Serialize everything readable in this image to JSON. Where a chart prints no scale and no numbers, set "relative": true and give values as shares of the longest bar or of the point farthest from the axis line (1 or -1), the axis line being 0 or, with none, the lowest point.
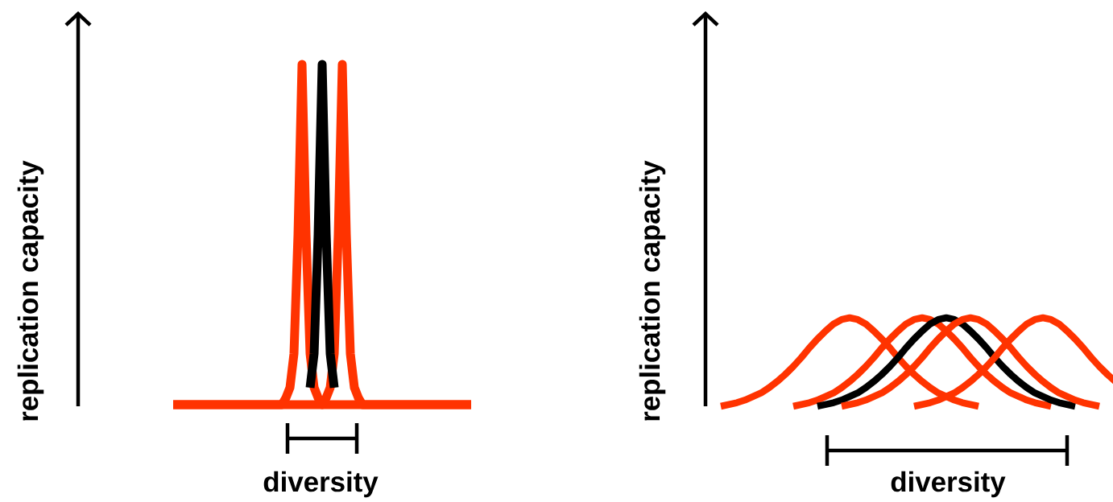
{
  "chart_data": [
    {
      "type": "line",
      "relative": true,
      "ylabel": "replication capacity",
      "xlabel": "diversity",
      "line_style": "solid",
      "marker": "none",
      "categories": [
        null,
        null,
        null,
        null,
        null,
        null,
        null,
        null,
        null,
        null,
        null,
        null,
        null,
        null,
        null,
        null,
        null,
        null,
        null,
        null,
        null,
        null,
        null,
        null,
        null,
        null,
        null,
        null,
        null,
        null,
        null,
        null,
        null,
        null,
        null,
        null,
        null,
        null,
        null,
        null,
        null,
        null,
        null,
        null,
        null,
        null,
        null,
        null,
        null,
        null,
        null,
        null,
        null,
        null,
        null,
        null,
        null,
        null,
        null,
        null,
        null,
        null,
        null,
        null,
        null,
        null,
        null,
        null,
        null,
        null,
        null,
        null,
        null,
        null,
        null
      ],
      "series": [
        {
          "color": "#ff3300",
          "values": [
            0,
            0,
            0,
            0,
            0,
            0,
            0,
            0,
            0,
            0,
            0,
            0,
            0,
            0,
            0,
            0,
            0,
            0,
            0,
            0,
            0,
            0,
            0,
            0,
            0,
            0,
            0,
            0,
            0.02,
            0.05,
            0.15,
            0.5,
            1,
            0.5,
            0.15,
            0.05,
            0.02,
            0,
            0,
            0,
            0,
            0,
            0,
            0,
            0,
            0,
            0,
            0,
            0,
            0,
            0,
            0,
            0,
            0,
            0,
            0,
            0,
            0,
            0,
            0,
            0,
            0,
            0,
            0,
            0,
            0,
            0,
            0,
            0,
            0,
            0,
            0,
            0,
            0,
            0
          ]
        },
        {
          "color": "#ff3300",
          "values": [
            0,
            0,
            0,
            0,
            0,
            0,
            0,
            0,
            0,
            0,
            0,
            0,
            0,
            0,
            0,
            0,
            0,
            0,
            0,
            0,
            0,
            0,
            0,
            0,
            0,
            0,
            0,
            0,
            0,
            0,
            0,
            0,
            0,
            0,
            0,
            0,
            0,
            0,
            0.02,
            0.05,
            0.15,
            0.5,
            1,
            0.5,
            0.15,
            0.05,
            0.02,
            0,
            0,
            0,
            0,
            0,
            0,
            0,
            0,
            0,
            0,
            0,
            0,
            0,
            0,
            0,
            0,
            0,
            0,
            0,
            0,
            0,
            0,
            0,
            0,
            0,
            0,
            0,
            0
          ]
        },
        {
          "color": "#000000",
          "values": [
            null,
            null,
            null,
            null,
            null,
            null,
            null,
            null,
            null,
            null,
            null,
            null,
            null,
            null,
            null,
            null,
            null,
            null,
            null,
            null,
            null,
            null,
            null,
            null,
            null,
            null,
            null,
            null,
            null,
            null,
            null,
            null,
            null,
            null,
            0.05,
            0.15,
            0.5,
            1,
            0.5,
            0.15,
            0.05,
            null,
            null,
            null,
            null,
            null,
            null,
            null,
            null,
            null,
            null,
            null,
            null,
            null,
            null,
            null,
            null,
            null,
            null,
            null,
            null,
            null,
            null,
            null,
            null,
            null,
            null,
            null,
            null,
            null,
            null,
            null,
            null,
            null,
            null
          ]
        }
      ]
    },
    {
      "type": "line",
      "relative": true,
      "ylabel": "replication capacity",
      "xlabel": "diversity",
      "line_style": "solid",
      "marker": "none",
      "categories": [
        null,
        null,
        null,
        null,
        null,
        null,
        null,
        null,
        null,
        null,
        null,
        null,
        null,
        null,
        null,
        null,
        null,
        null,
        null,
        null,
        null,
        null,
        null,
        null,
        null,
        null,
        null,
        null,
        null,
        null,
        null,
        null,
        null,
        null,
        null,
        null,
        null,
        null,
        null,
        null,
        null,
        null,
        null,
        null,
        null,
        null,
        null,
        null,
        null,
        null
      ],
      "series": [
        {
          "color": "#ff3300",
          "values": [
            0,
            0.02,
            0.04,
            0.07,
            0.11,
            0.15,
            0.21,
            0.28,
            0.36,
            0.45,
            0.55,
            0.66,
            0.76,
            0.85,
            0.93,
            0.98,
            1,
            0.98,
            0.93,
            0.85,
            0.76,
            0.66,
            0.55,
            0.45,
            0.36,
            0.28,
            0.21,
            0.15,
            0.11,
            0.07,
            0.04,
            0.02,
            0,
            null,
            null,
            null,
            null,
            null,
            null,
            null,
            null,
            null,
            null,
            null,
            null,
            null,
            null,
            null,
            null,
            null
          ]
        },
        {
          "color": "#ff3300",
          "values": [
            null,
            null,
            null,
            null,
            null,
            null,
            null,
            null,
            null,
            0,
            0.02,
            0.04,
            0.07,
            0.11,
            0.15,
            0.21,
            0.28,
            0.36,
            0.45,
            0.55,
            0.66,
            0.76,
            0.85,
            0.93,
            0.98,
            1,
            0.98,
            0.93,
            0.85,
            0.76,
            0.66,
            0.55,
            0.45,
            0.36,
            0.28,
            0.21,
            0.15,
            0.11,
            0.07,
            0.04,
            0.02,
            0,
            null,
            null,
            null,
            null,
            null,
            null,
            null,
            null
          ]
        },
        {
          "color": "#000000",
          "values": [
            null,
            null,
            null,
            null,
            null,
            null,
            null,
            null,
            null,
            null,
            null,
            null,
            0,
            0.02,
            0.04,
            0.07,
            0.11,
            0.15,
            0.21,
            0.28,
            0.36,
            0.45,
            0.55,
            0.66,
            0.76,
            0.85,
            0.93,
            0.98,
            1,
            0.98,
            0.93,
            0.85,
            0.76,
            0.66,
            0.55,
            0.45,
            0.36,
            0.28,
            0.21,
            0.15,
            0.11,
            0.07,
            0.04,
            0.02,
            0,
            null,
            null,
            null,
            null,
            null
          ]
        },
        {
          "color": "#ff3300",
          "values": [
            null,
            null,
            null,
            null,
            null,
            null,
            null,
            null,
            null,
            null,
            null,
            null,
            null,
            null,
            null,
            0,
            0.02,
            0.04,
            0.07,
            0.11,
            0.15,
            0.21,
            0.28,
            0.36,
            0.45,
            0.55,
            0.66,
            0.76,
            0.85,
            0.93,
            0.98,
            1,
            0.98,
            0.93,
            0.85,
            0.76,
            0.66,
            0.55,
            0.45,
            0.36,
            0.28,
            0.21,
            0.15,
            0.11,
            0.07,
            0.04,
            0.02,
            0,
            null,
            null
          ]
        },
        {
          "color": "#ff3300",
          "values": [
            null,
            null,
            null,
            null,
            null,
            null,
            null,
            null,
            null,
            null,
            null,
            null,
            null,
            null,
            null,
            null,
            null,
            null,
            null,
            null,
            null,
            null,
            null,
            null,
            0,
            0.02,
            0.04,
            0.07,
            0.11,
            0.15,
            0.21,
            0.28,
            0.36,
            0.45,
            0.55,
            0.66,
            0.76,
            0.85,
            0.93,
            0.98,
            1,
            0.98,
            0.93,
            0.85,
            0.76,
            0.66,
            0.55,
            0.45,
            0.36,
            0.28
          ]
        }
      ]
    }
  ]
}
